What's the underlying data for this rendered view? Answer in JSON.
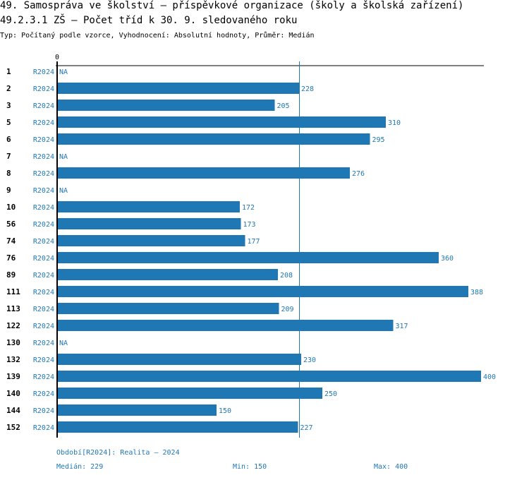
{
  "header": {
    "title": "49. Samospráva ve školství – příspěvkové organizace (školy a školská zařízení)",
    "subtitle": "49.2.3.1 ZŠ – Počet tříd k 30. 9. sledovaného roku",
    "meta": "Typ: Počítaný podle vzorce, Vyhodnocení: Absolutní hodnoty, Průměr: Medián"
  },
  "colors": {
    "bar": "#1f77b4",
    "text_accent": "#1f77b4",
    "axis": "#000000"
  },
  "chart_data": {
    "type": "bar",
    "orientation": "horizontal",
    "title": "49.2.3.1 ZŠ – Počet tříd k 30. 9. sledovaného roku",
    "xlabel": "",
    "ylabel": "",
    "xlim": [
      0,
      400
    ],
    "x_ticks": [
      "0"
    ],
    "grid": false,
    "period_label": "R2024",
    "na_label": "NA",
    "categories": [
      "1",
      "2",
      "3",
      "5",
      "6",
      "7",
      "8",
      "9",
      "10",
      "56",
      "74",
      "76",
      "89",
      "111",
      "113",
      "122",
      "130",
      "132",
      "139",
      "140",
      "144",
      "152"
    ],
    "values": [
      null,
      228,
      205,
      310,
      295,
      null,
      276,
      null,
      172,
      173,
      177,
      360,
      208,
      388,
      209,
      317,
      null,
      230,
      400,
      250,
      150,
      227
    ],
    "reference_line": {
      "name": "Medián",
      "value": 229
    }
  },
  "footer": {
    "period": "Období[R2024]: Realita – 2024",
    "median": "Medián: 229",
    "min": "Min: 150",
    "max": "Max: 400"
  }
}
